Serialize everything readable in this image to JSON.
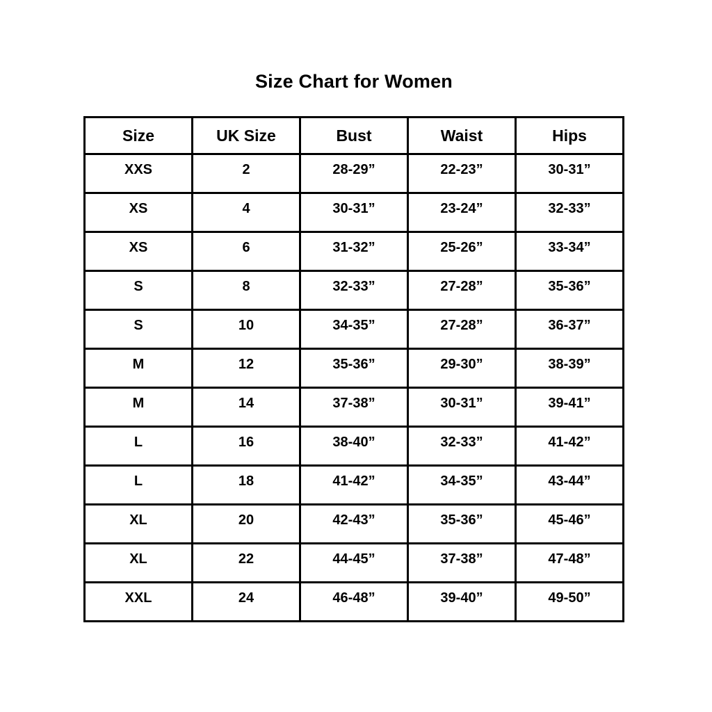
{
  "title": "Size Chart for Women",
  "colors": {
    "background": "#ffffff",
    "text": "#000000",
    "border": "#000000"
  },
  "table": {
    "headers": [
      "Size",
      "UK Size",
      "Bust",
      "Waist",
      "Hips"
    ],
    "rows": [
      [
        "XXS",
        "2",
        "28-29”",
        "22-23”",
        "30-31”"
      ],
      [
        "XS",
        "4",
        "30-31”",
        "23-24”",
        "32-33”"
      ],
      [
        "XS",
        "6",
        "31-32”",
        "25-26”",
        "33-34”"
      ],
      [
        "S",
        "8",
        "32-33”",
        "27-28”",
        "35-36”"
      ],
      [
        "S",
        "10",
        "34-35”",
        "27-28”",
        "36-37”"
      ],
      [
        "M",
        "12",
        "35-36”",
        "29-30”",
        "38-39”"
      ],
      [
        "M",
        "14",
        "37-38”",
        "30-31”",
        "39-41”"
      ],
      [
        "L",
        "16",
        "38-40”",
        "32-33”",
        "41-42”"
      ],
      [
        "L",
        "18",
        "41-42”",
        "34-35”",
        "43-44”"
      ],
      [
        "XL",
        "20",
        "42-43”",
        "35-36”",
        "45-46”"
      ],
      [
        "XL",
        "22",
        "44-45”",
        "37-38”",
        "47-48”"
      ],
      [
        "XXL",
        "24",
        "46-48”",
        "39-40”",
        "49-50”"
      ]
    ]
  }
}
